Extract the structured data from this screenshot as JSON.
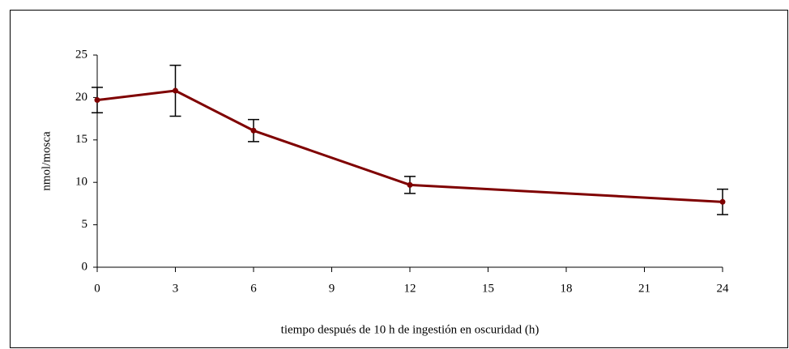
{
  "chart_data": {
    "type": "line",
    "xlabel": "tiempo después de 10 h de ingestión en oscuridad (h)",
    "ylabel": "nmol/mosca",
    "x": [
      0,
      3,
      6,
      12,
      24
    ],
    "series": [
      {
        "color": "#7f0000",
        "values": [
          19.7,
          20.8,
          16.1,
          9.7,
          7.7
        ],
        "errors": [
          1.5,
          3.0,
          1.3,
          1.0,
          1.5
        ]
      }
    ],
    "xlim": [
      0,
      24
    ],
    "xticks": [
      0,
      3,
      6,
      9,
      12,
      15,
      18,
      21,
      24
    ],
    "ylim": [
      0,
      25
    ],
    "yticks": [
      0,
      5,
      10,
      15,
      20,
      25
    ],
    "grid": false
  }
}
